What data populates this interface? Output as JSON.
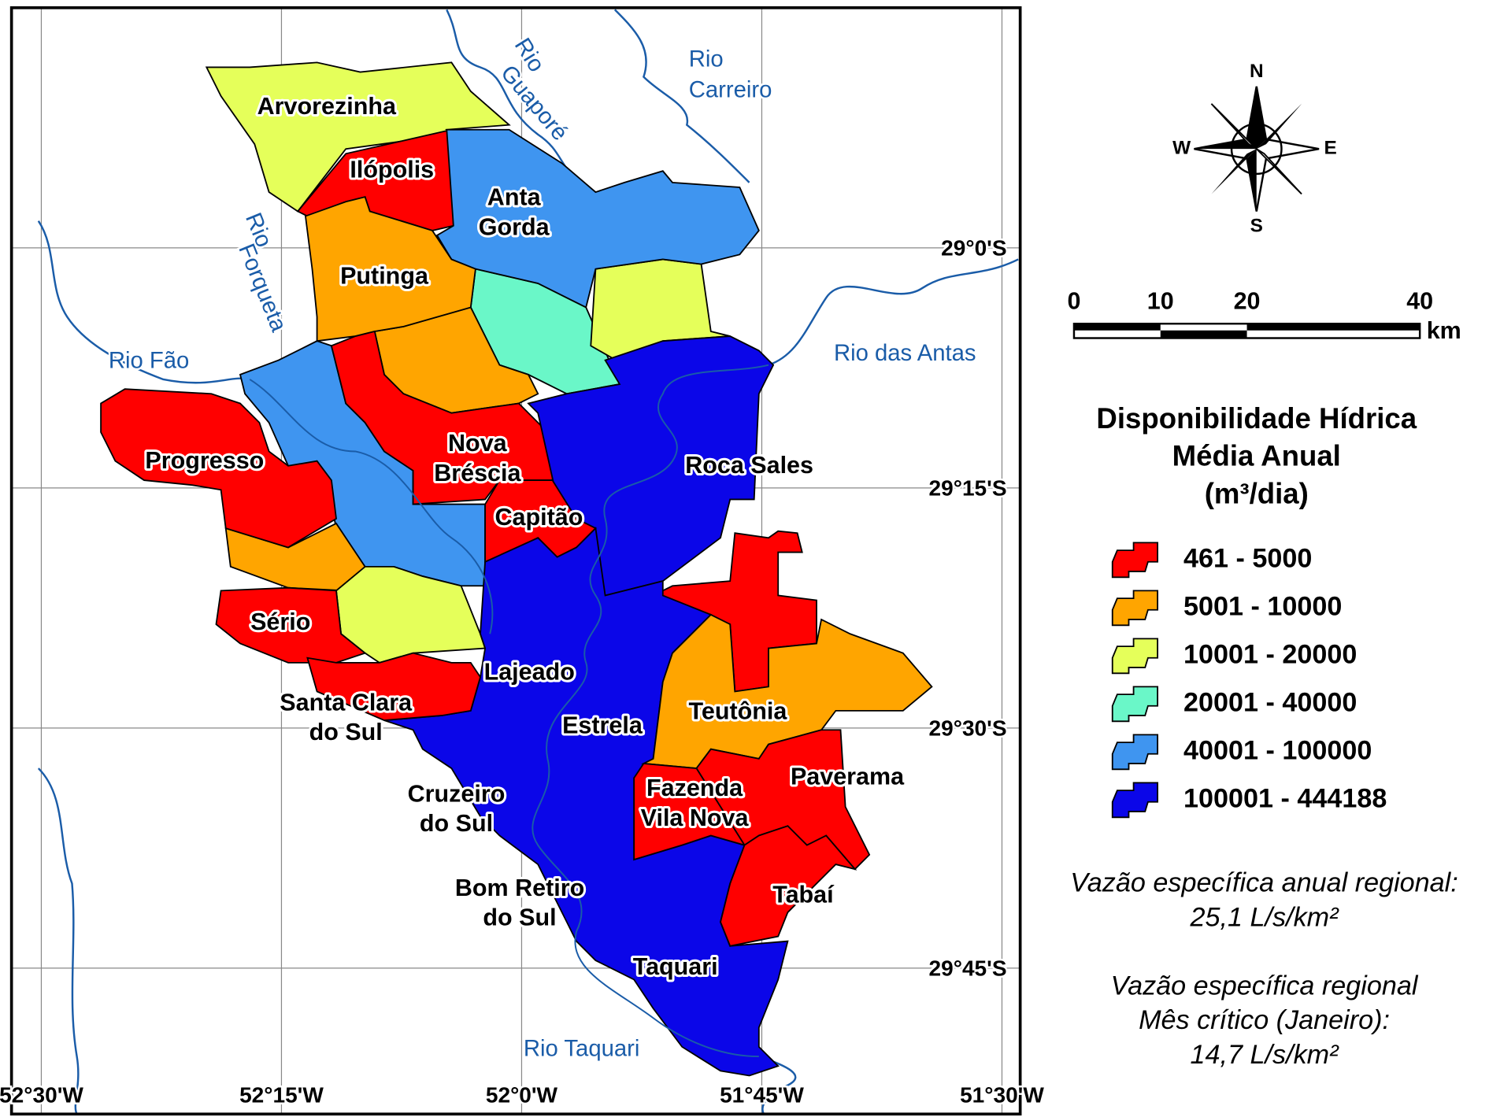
{
  "municipalities": [
    {
      "name": [
        "Arvorezinha"
      ],
      "class": 2
    },
    {
      "name": [
        "Ilópolis"
      ],
      "class": 0
    },
    {
      "name": [
        "Anta",
        "Gorda"
      ],
      "class": 4
    },
    {
      "name": [
        "Putinga"
      ],
      "class": 1
    },
    {
      "name": [
        "Nova",
        "Bréscia"
      ],
      "class": 0
    },
    {
      "name": [
        "Progresso"
      ],
      "class": 0
    },
    {
      "name": [
        "Roca Sales"
      ],
      "class": 5
    },
    {
      "name": [
        "Capitão"
      ],
      "class": 0
    },
    {
      "name": [
        "Sério"
      ],
      "class": 0
    },
    {
      "name": [
        "Lajeado"
      ],
      "class": 5
    },
    {
      "name": [
        "Santa Clara",
        "do Sul"
      ],
      "class": 0
    },
    {
      "name": [
        "Teutônia"
      ],
      "class": 1
    },
    {
      "name": [
        "Estrela"
      ],
      "class": 5
    },
    {
      "name": [
        "Paverama"
      ],
      "class": 0
    },
    {
      "name": [
        "Cruzeiro",
        "do Sul"
      ],
      "class": 5
    },
    {
      "name": [
        "Fazenda",
        "Vila Nova"
      ],
      "class": 0
    },
    {
      "name": [
        "Tabaí"
      ],
      "class": 0
    },
    {
      "name": [
        "Bom Retiro",
        "do Sul"
      ],
      "class": 5
    },
    {
      "name": [
        "Taquari"
      ],
      "class": 5
    }
  ],
  "rivers": [
    {
      "name": [
        "Rio",
        "Guaporé"
      ]
    },
    {
      "name": [
        "Rio",
        "Carreiro"
      ]
    },
    {
      "name": [
        "Rio",
        "Forqueta"
      ]
    },
    {
      "name": [
        "Rio Fão"
      ]
    },
    {
      "name": [
        "Rio das Antas"
      ]
    },
    {
      "name": [
        "Rio Taquari"
      ]
    }
  ],
  "grid": {
    "lat_labels": [
      "29°0'S",
      "29°15'S",
      "29°30'S",
      "29°45'S"
    ],
    "lon_labels": [
      "52°30'W",
      "52°15'W",
      "52°0'W",
      "51°45'W",
      "51°30'W"
    ]
  },
  "compass": {
    "n": "N",
    "s": "S",
    "e": "E",
    "w": "W"
  },
  "scale_bar": {
    "ticks": [
      "0",
      "10",
      "20",
      "40"
    ],
    "unit": "km"
  },
  "legend": {
    "title": [
      "Disponibilidade Hídrica",
      "Média Anual",
      "(m³/dia)"
    ],
    "classes": [
      {
        "label": "461 - 5000",
        "color": "#ff0000"
      },
      {
        "label": "5001 - 10000",
        "color": "#ffa500"
      },
      {
        "label": "10001 - 20000",
        "color": "#e5ff5a"
      },
      {
        "label": "20001 - 40000",
        "color": "#6af7c8"
      },
      {
        "label": "40001 - 100000",
        "color": "#3f95f0"
      },
      {
        "label": "100001 - 444188",
        "color": "#0b06e8"
      }
    ]
  },
  "notes": [
    "Vazão específica anual regional:",
    "25,1 L/s/km²",
    "Vazão específica regional",
    "Mês crítico (Janeiro):",
    "14,7 L/s/km²"
  ]
}
